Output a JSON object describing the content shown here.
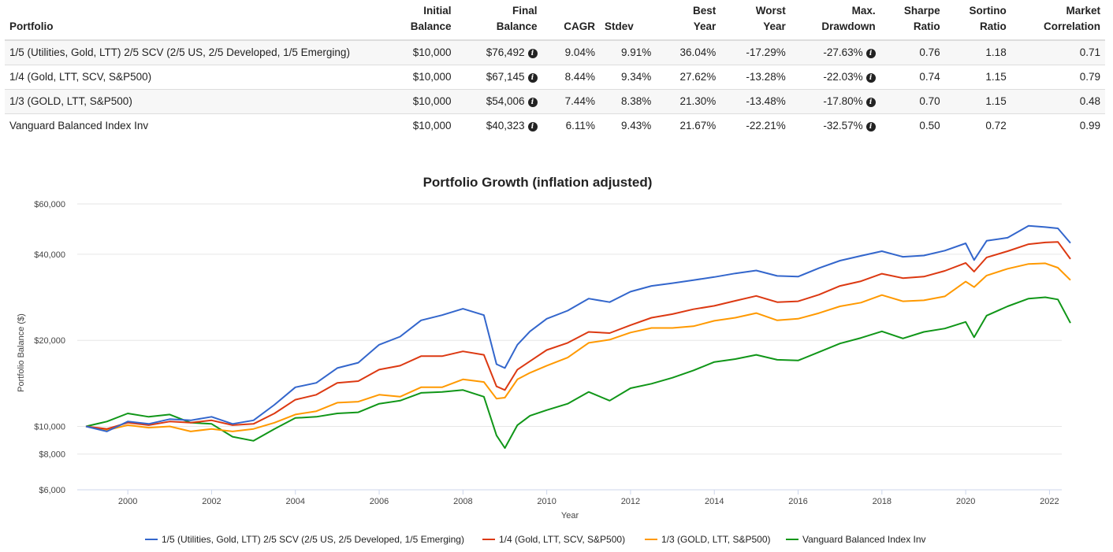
{
  "table": {
    "headers": {
      "portfolio": "Portfolio",
      "initial_1": "Initial",
      "initial_2": "Balance",
      "final_1": "Final",
      "final_2": "Balance",
      "cagr": "CAGR",
      "stdev": "Stdev",
      "best_1": "Best",
      "best_2": "Year",
      "worst_1": "Worst",
      "worst_2": "Year",
      "dd_1": "Max.",
      "dd_2": "Drawdown",
      "sharpe_1": "Sharpe",
      "sharpe_2": "Ratio",
      "sortino_1": "Sortino",
      "sortino_2": "Ratio",
      "corr_1": "Market",
      "corr_2": "Correlation"
    },
    "rows": [
      {
        "name": "1/5 (Utilities, Gold, LTT) 2/5 SCV (2/5 US, 2/5 Developed, 1/5 Emerging)",
        "initial": "$10,000",
        "final": "$76,492",
        "cagr": "9.04%",
        "stdev": "9.91%",
        "best": "36.04%",
        "worst": "-17.29%",
        "drawdown": "-27.63%",
        "sharpe": "0.76",
        "sortino": "1.18",
        "correlation": "0.71"
      },
      {
        "name": "1/4 (Gold, LTT, SCV, S&P500)",
        "initial": "$10,000",
        "final": "$67,145",
        "cagr": "8.44%",
        "stdev": "9.34%",
        "best": "27.62%",
        "worst": "-13.28%",
        "drawdown": "-22.03%",
        "sharpe": "0.74",
        "sortino": "1.15",
        "correlation": "0.79"
      },
      {
        "name": "1/3 (GOLD, LTT, S&P500)",
        "initial": "$10,000",
        "final": "$54,006",
        "cagr": "7.44%",
        "stdev": "8.38%",
        "best": "21.30%",
        "worst": "-13.48%",
        "drawdown": "-17.80%",
        "sharpe": "0.70",
        "sortino": "1.15",
        "correlation": "0.48"
      },
      {
        "name": "Vanguard Balanced Index Inv",
        "initial": "$10,000",
        "final": "$40,323",
        "cagr": "6.11%",
        "stdev": "9.43%",
        "best": "21.67%",
        "worst": "-22.21%",
        "drawdown": "-32.57%",
        "sharpe": "0.50",
        "sortino": "0.72",
        "correlation": "0.99"
      }
    ]
  },
  "chart_data": {
    "type": "line",
    "title": "Portfolio Growth (inflation adjusted)",
    "xlabel": "Year",
    "ylabel": "Portfolio Balance ($)",
    "y_scale": "log",
    "ylim": [
      6000,
      60000
    ],
    "xlim": [
      1999,
      2022.5
    ],
    "y_ticks": [
      6000,
      8000,
      10000,
      20000,
      40000,
      60000
    ],
    "y_tick_labels": [
      "$6,000",
      "$8,000",
      "$10,000",
      "$20,000",
      "$40,000",
      "$60,000"
    ],
    "x_ticks": [
      2000,
      2002,
      2004,
      2006,
      2008,
      2010,
      2012,
      2014,
      2016,
      2018,
      2020,
      2022
    ],
    "x_tick_labels": [
      "2000",
      "2002",
      "2004",
      "2006",
      "2008",
      "2010",
      "2012",
      "2014",
      "2016",
      "2018",
      "2020",
      "2022"
    ],
    "grid": "horizontal",
    "legend_position": "bottom",
    "x": [
      1999.0,
      1999.5,
      2000.0,
      2000.5,
      2001.0,
      2001.5,
      2002.0,
      2002.5,
      2003.0,
      2003.5,
      2004.0,
      2004.5,
      2005.0,
      2005.5,
      2006.0,
      2006.5,
      2007.0,
      2007.5,
      2008.0,
      2008.5,
      2008.8,
      2009.0,
      2009.3,
      2009.6,
      2010.0,
      2010.5,
      2011.0,
      2011.5,
      2012.0,
      2012.5,
      2013.0,
      2013.5,
      2014.0,
      2014.5,
      2015.0,
      2015.5,
      2016.0,
      2016.5,
      2017.0,
      2017.5,
      2018.0,
      2018.5,
      2019.0,
      2019.5,
      2020.0,
      2020.2,
      2020.5,
      2021.0,
      2021.5,
      2021.9,
      2022.2,
      2022.5
    ],
    "series": [
      {
        "name": "1/5 (Utilities, Gold, LTT) 2/5 SCV (2/5 US, 2/5 Developed, 1/5 Emerging)",
        "color": "#3366cc",
        "values": [
          10000,
          9600,
          10400,
          10200,
          10600,
          10500,
          10800,
          10200,
          10500,
          11900,
          13700,
          14200,
          16000,
          16700,
          19300,
          20600,
          23500,
          24500,
          25800,
          24500,
          16500,
          16000,
          19300,
          21500,
          23800,
          25400,
          28000,
          27200,
          29600,
          31000,
          31700,
          32500,
          33300,
          34300,
          35100,
          33600,
          33400,
          35800,
          38000,
          39500,
          41000,
          39200,
          39600,
          41200,
          43700,
          38200,
          44600,
          45700,
          50300,
          49800,
          49300,
          43800
        ]
      },
      {
        "name": "1/4 (Gold, LTT, SCV, S&P500)",
        "color": "#dc3912",
        "values": [
          10000,
          9800,
          10300,
          10100,
          10400,
          10300,
          10500,
          10100,
          10200,
          11100,
          12400,
          12900,
          14200,
          14400,
          15800,
          16300,
          17600,
          17600,
          18300,
          17800,
          13800,
          13400,
          15800,
          16900,
          18500,
          19600,
          21400,
          21200,
          22600,
          24000,
          24700,
          25700,
          26400,
          27500,
          28600,
          27200,
          27400,
          28900,
          31000,
          32200,
          34200,
          33000,
          33400,
          35000,
          37300,
          34800,
          39000,
          41000,
          43400,
          44000,
          44200,
          38500
        ]
      },
      {
        "name": "1/3 (GOLD, LTT, S&P500)",
        "color": "#ff9900",
        "values": [
          10000,
          9700,
          10100,
          9900,
          10000,
          9600,
          9800,
          9600,
          9800,
          10300,
          11000,
          11300,
          12100,
          12200,
          12900,
          12700,
          13700,
          13700,
          14600,
          14300,
          12500,
          12600,
          14600,
          15400,
          16300,
          17400,
          19600,
          20100,
          21300,
          22100,
          22100,
          22400,
          23400,
          24000,
          24900,
          23500,
          23800,
          24900,
          26300,
          27100,
          28800,
          27400,
          27600,
          28500,
          32100,
          30700,
          33700,
          35600,
          37000,
          37200,
          35900,
          32500
        ]
      },
      {
        "name": "Vanguard Balanced Index Inv",
        "color": "#109618",
        "values": [
          10000,
          10400,
          11100,
          10800,
          11000,
          10300,
          10200,
          9200,
          8900,
          9800,
          10700,
          10800,
          11100,
          11200,
          12000,
          12300,
          13100,
          13200,
          13400,
          12700,
          9300,
          8400,
          10100,
          10900,
          11400,
          12000,
          13200,
          12300,
          13600,
          14100,
          14800,
          15700,
          16800,
          17200,
          17800,
          17100,
          17000,
          18200,
          19500,
          20400,
          21500,
          20300,
          21400,
          22000,
          23200,
          20500,
          24400,
          26300,
          28000,
          28300,
          27800,
          23000
        ]
      }
    ]
  }
}
